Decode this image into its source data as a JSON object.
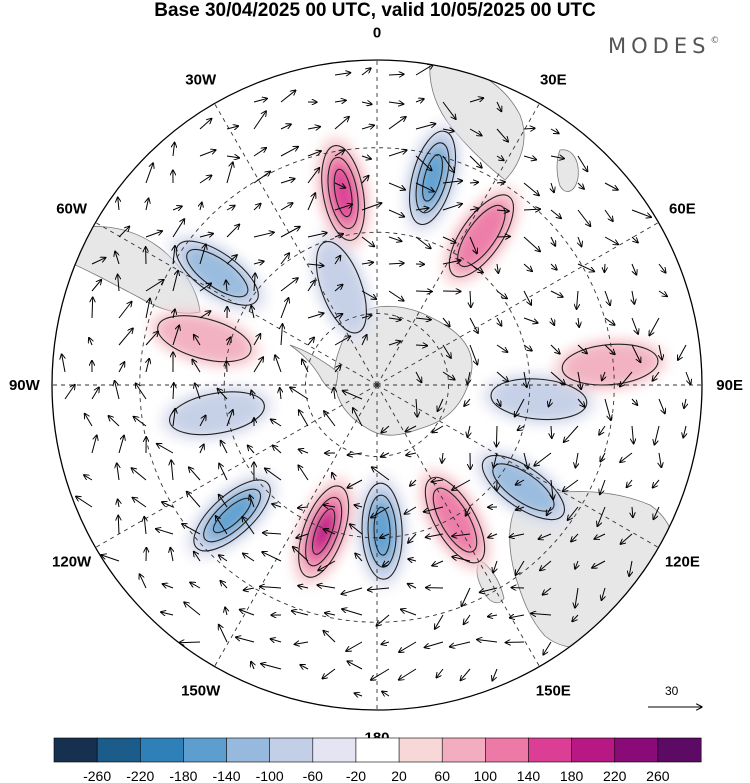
{
  "title": "Base 30/04/2025 00 UTC, valid 10/05/2025 00 UTC",
  "brand": "MODES",
  "brand_mark": "©",
  "longitude_labels": [
    "0",
    "30E",
    "60E",
    "90E",
    "120E",
    "150E",
    "180",
    "150W",
    "120W",
    "90W",
    "60W",
    "30W"
  ],
  "vector_reference": {
    "value": "30"
  },
  "colorbar": {
    "tick_labels": [
      "-260",
      "-220",
      "-180",
      "-140",
      "-100",
      "-60",
      "-20",
      "20",
      "60",
      "100",
      "140",
      "180",
      "220",
      "260"
    ],
    "colors": [
      "#16304f",
      "#1c5c8a",
      "#2f7fb8",
      "#5c9fcf",
      "#96b9dd",
      "#c3cfe6",
      "#e4e4f2",
      "#ffffff",
      "#f8d7d8",
      "#f2aec0",
      "#ec79a6",
      "#dc3e95",
      "#b81884",
      "#8a0b77",
      "#5c0a63"
    ]
  },
  "map_features": {
    "projection": "south-polar-stereographic",
    "anomalies": [
      {
        "lon": -10,
        "r": 0.6,
        "sign": "positive",
        "level": 3
      },
      {
        "lon": 15,
        "r": 0.66,
        "sign": "negative",
        "level": 3
      },
      {
        "lon": 35,
        "r": 0.56,
        "sign": "positive",
        "level": 2
      },
      {
        "lon": -55,
        "r": 0.6,
        "sign": "negative",
        "level": 2
      },
      {
        "lon": -20,
        "r": 0.32,
        "sign": "negative",
        "level": 1
      },
      {
        "lon": 95,
        "r": 0.5,
        "sign": "negative",
        "level": 1
      },
      {
        "lon": 85,
        "r": 0.72,
        "sign": "positive",
        "level": 1
      },
      {
        "lon": 125,
        "r": 0.55,
        "sign": "negative",
        "level": 2
      },
      {
        "lon": 150,
        "r": 0.48,
        "sign": "positive",
        "level": 2
      },
      {
        "lon": 178,
        "r": 0.45,
        "sign": "negative",
        "level": 3
      },
      {
        "lon": -160,
        "r": 0.48,
        "sign": "positive",
        "level": 4
      },
      {
        "lon": -132,
        "r": 0.6,
        "sign": "negative",
        "level": 3
      },
      {
        "lon": -75,
        "r": 0.55,
        "sign": "positive",
        "level": 1
      },
      {
        "lon": -100,
        "r": 0.5,
        "sign": "negative",
        "level": 1
      }
    ]
  }
}
